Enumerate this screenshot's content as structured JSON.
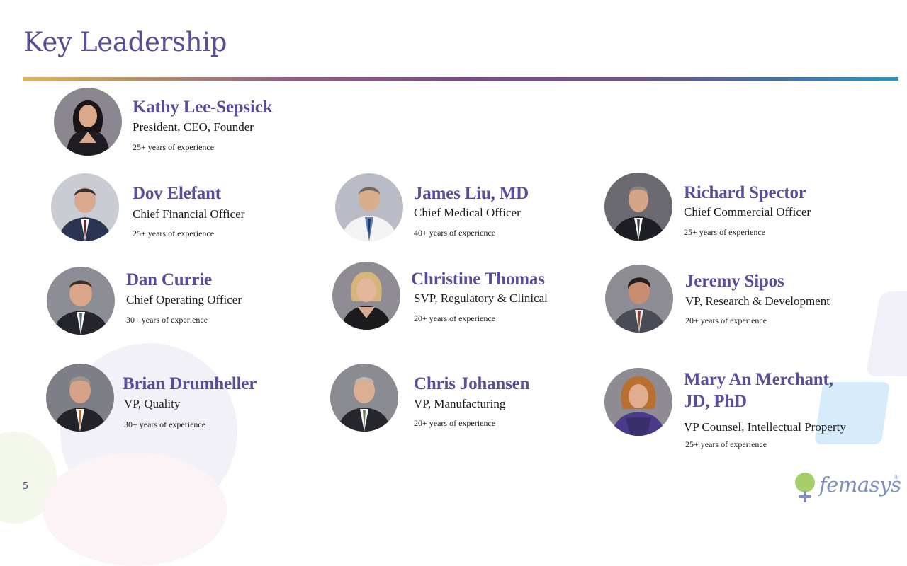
{
  "page": {
    "title": "Key Leadership",
    "page_number": "5"
  },
  "colors": {
    "title": "#5b4d99",
    "name": "#5b4d99",
    "divider_gradient": [
      "#f0b23c",
      "#83448e",
      "#1c99cf"
    ]
  },
  "people": [
    {
      "name": "Kathy Lee-Sepsick",
      "role": "President, CEO, Founder",
      "experience": "25+ years of experience"
    },
    {
      "name": "Dov Elefant",
      "role": "Chief Financial Officer",
      "experience": "25+ years of experience"
    },
    {
      "name": "James Liu, MD",
      "role": "Chief Medical Officer",
      "experience": "40+ years of experience"
    },
    {
      "name": "Richard Spector",
      "role": "Chief Commercial Officer",
      "experience": "25+ years of experience"
    },
    {
      "name": "Dan Currie",
      "role": "Chief Operating Officer",
      "experience": "30+ years of experience"
    },
    {
      "name": "Christine Thomas",
      "role": "SVP, Regulatory & Clinical",
      "experience": "20+ years of experience"
    },
    {
      "name": "Jeremy Sipos",
      "role": "VP, Research & Development",
      "experience": "20+ years of experience"
    },
    {
      "name": "Brian Drumheller",
      "role": "VP, Quality",
      "experience": "30+ years of experience"
    },
    {
      "name": "Chris Johansen",
      "role": "VP, Manufacturing",
      "experience": "20+ years of experience"
    },
    {
      "name_line1": "Mary An Merchant,",
      "name_line2": "JD, PhD",
      "role": "VP Counsel, Intellectual Property",
      "experience": "25+ years of experience"
    }
  ],
  "logo": {
    "text": "femasys",
    "registered": "®",
    "icon": "femasys-logo-mark"
  }
}
